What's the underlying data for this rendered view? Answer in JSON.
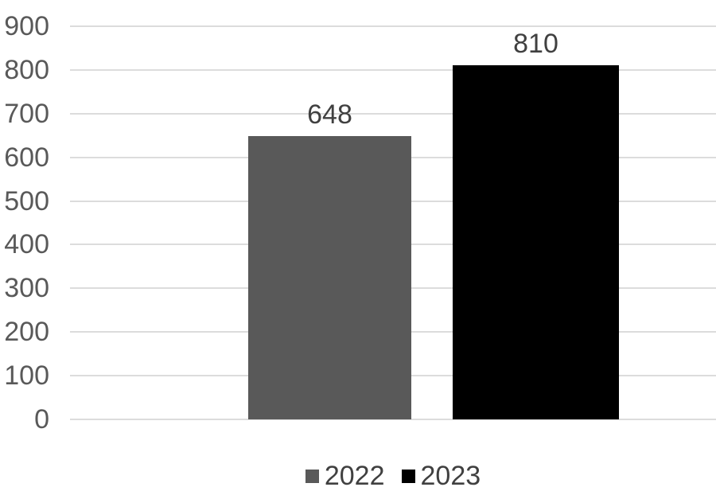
{
  "chart_data": {
    "type": "bar",
    "categories": [
      ""
    ],
    "series": [
      {
        "name": "2022",
        "values": [
          648
        ],
        "color": "#595959"
      },
      {
        "name": "2023",
        "values": [
          810
        ],
        "color": "#000000"
      }
    ],
    "title": "",
    "xlabel": "",
    "ylabel": "",
    "ylim": [
      0,
      900
    ],
    "yticks": [
      0,
      100,
      200,
      300,
      400,
      500,
      600,
      700,
      800,
      900
    ],
    "grid": true,
    "legend_position": "bottom",
    "data_labels": [
      "648",
      "810"
    ]
  },
  "colors": {
    "background": "#ffffff",
    "gridline": "#dcdcdc",
    "axis_text": "#595959",
    "data_label_text": "#404040",
    "legend_text": "#404040"
  }
}
